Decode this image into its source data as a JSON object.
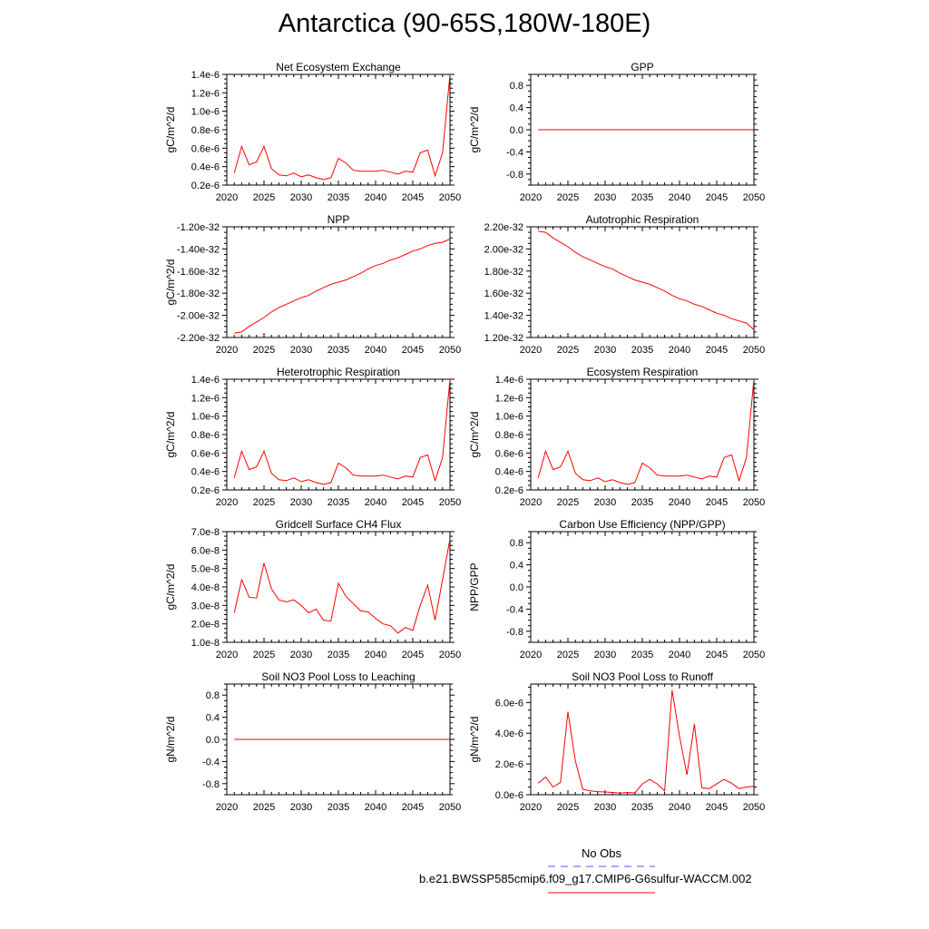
{
  "title": "Antarctica (90-65S,180W-180E)",
  "legend": {
    "obs_label": "No Obs",
    "obs_color": "#5555ff",
    "case_label": "b.e21.BWSSP585cmip6.f09_g17.CMIP6-G6sulfur-WACCM.002",
    "case_color": "#ff0000"
  },
  "chart_data": [
    {
      "type": "line",
      "title": "Net Ecosystem Exchange",
      "ylabel": "gC/m^2/d",
      "xlim": [
        2020,
        2050
      ],
      "x_ticks": [
        2020,
        2025,
        2030,
        2035,
        2040,
        2045,
        2050
      ],
      "ylim": [
        2e-07,
        1.4e-06
      ],
      "y_ticks": [
        2e-07,
        4e-07,
        6e-07,
        8e-07,
        1e-06,
        1.2e-06,
        1.4e-06
      ],
      "y_tick_labels": [
        "0.2e-6",
        "0.4e-6",
        "0.6e-6",
        "0.8e-6",
        "1.0e-6",
        "1.2e-6",
        "1.4e-6"
      ],
      "x": [
        2021,
        2022,
        2023,
        2024,
        2025,
        2026,
        2027,
        2028,
        2029,
        2030,
        2031,
        2032,
        2033,
        2034,
        2035,
        2036,
        2037,
        2038,
        2039,
        2040,
        2041,
        2042,
        2043,
        2044,
        2045,
        2046,
        2047,
        2048,
        2049,
        2050
      ],
      "values": [
        3.3e-07,
        6.2e-07,
        4.2e-07,
        4.5e-07,
        6.2e-07,
        3.8e-07,
        3.1e-07,
        3e-07,
        3.3e-07,
        2.9e-07,
        3.1e-07,
        2.8e-07,
        2.6e-07,
        2.8e-07,
        4.9e-07,
        4.4e-07,
        3.6e-07,
        3.5e-07,
        3.5e-07,
        3.5e-07,
        3.6e-07,
        3.4e-07,
        3.2e-07,
        3.5e-07,
        3.4e-07,
        5.5e-07,
        5.8e-07,
        3e-07,
        5.5e-07,
        1.4e-06
      ],
      "color": "#ff0000"
    },
    {
      "type": "line",
      "title": "GPP",
      "ylabel": "gC/m^2/d",
      "xlim": [
        2020,
        2050
      ],
      "x_ticks": [
        2020,
        2025,
        2030,
        2035,
        2040,
        2045,
        2050
      ],
      "ylim": [
        -1.0,
        1.0
      ],
      "y_ticks": [
        -0.8,
        -0.4,
        0.0,
        0.4,
        0.8
      ],
      "y_tick_labels": [
        "-0.8",
        "-0.4",
        "0.0",
        "0.4",
        "0.8"
      ],
      "x": [
        2021,
        2050
      ],
      "values": [
        0.0,
        0.0
      ],
      "color": "#ff0000"
    },
    {
      "type": "line",
      "title": "NPP",
      "ylabel": "gC/m^2/d",
      "xlim": [
        2020,
        2050
      ],
      "x_ticks": [
        2020,
        2025,
        2030,
        2035,
        2040,
        2045,
        2050
      ],
      "ylim": [
        -2.2e-32,
        -1.2e-32
      ],
      "y_ticks": [
        -2.2e-32,
        -2e-32,
        -1.8e-32,
        -1.6e-32,
        -1.4e-32,
        -1.2e-32
      ],
      "y_tick_labels": [
        "-2.20e-32",
        "-2.00e-32",
        "-1.80e-32",
        "-1.60e-32",
        "-1.40e-32",
        "-1.20e-32"
      ],
      "x": [
        2021,
        2022,
        2023,
        2024,
        2025,
        2026,
        2027,
        2028,
        2029,
        2030,
        2031,
        2032,
        2033,
        2034,
        2035,
        2036,
        2037,
        2038,
        2039,
        2040,
        2041,
        2042,
        2043,
        2044,
        2045,
        2046,
        2047,
        2048,
        2049,
        2050
      ],
      "values": [
        -2.16e-32,
        -2.15e-32,
        -2.1e-32,
        -2.06e-32,
        -2.02e-32,
        -1.97e-32,
        -1.93e-32,
        -1.9e-32,
        -1.87e-32,
        -1.84e-32,
        -1.82e-32,
        -1.78e-32,
        -1.75e-32,
        -1.72e-32,
        -1.7e-32,
        -1.68e-32,
        -1.65e-32,
        -1.62e-32,
        -1.58e-32,
        -1.55e-32,
        -1.53e-32,
        -1.5e-32,
        -1.48e-32,
        -1.45e-32,
        -1.42e-32,
        -1.4e-32,
        -1.37e-32,
        -1.35e-32,
        -1.34e-32,
        -1.31e-32
      ],
      "color": "#ff0000"
    },
    {
      "type": "line",
      "title": "Autotrophic Respiration",
      "ylabel": "",
      "xlim": [
        2020,
        2050
      ],
      "x_ticks": [
        2020,
        2025,
        2030,
        2035,
        2040,
        2045,
        2050
      ],
      "ylim": [
        1.2e-32,
        2.2e-32
      ],
      "y_ticks": [
        1.2e-32,
        1.4e-32,
        1.6e-32,
        1.8e-32,
        2e-32,
        2.2e-32
      ],
      "y_tick_labels": [
        "1.20e-32",
        "1.40e-32",
        "1.60e-32",
        "1.80e-32",
        "2.00e-32",
        "2.20e-32"
      ],
      "x": [
        2021,
        2022,
        2023,
        2024,
        2025,
        2026,
        2027,
        2028,
        2029,
        2030,
        2031,
        2032,
        2033,
        2034,
        2035,
        2036,
        2037,
        2038,
        2039,
        2040,
        2041,
        2042,
        2043,
        2044,
        2045,
        2046,
        2047,
        2048,
        2049,
        2050
      ],
      "values": [
        2.16e-32,
        2.15e-32,
        2.1e-32,
        2.06e-32,
        2.02e-32,
        1.97e-32,
        1.93e-32,
        1.9e-32,
        1.87e-32,
        1.84e-32,
        1.82e-32,
        1.78e-32,
        1.75e-32,
        1.72e-32,
        1.7e-32,
        1.68e-32,
        1.65e-32,
        1.62e-32,
        1.58e-32,
        1.55e-32,
        1.53e-32,
        1.5e-32,
        1.48e-32,
        1.45e-32,
        1.42e-32,
        1.4e-32,
        1.37e-32,
        1.35e-32,
        1.33e-32,
        1.27e-32
      ],
      "color": "#ff0000"
    },
    {
      "type": "line",
      "title": "Heterotrophic Respiration",
      "ylabel": "gC/m^2/d",
      "xlim": [
        2020,
        2050
      ],
      "x_ticks": [
        2020,
        2025,
        2030,
        2035,
        2040,
        2045,
        2050
      ],
      "ylim": [
        2e-07,
        1.4e-06
      ],
      "y_ticks": [
        2e-07,
        4e-07,
        6e-07,
        8e-07,
        1e-06,
        1.2e-06,
        1.4e-06
      ],
      "y_tick_labels": [
        "0.2e-6",
        "0.4e-6",
        "0.6e-6",
        "0.8e-6",
        "1.0e-6",
        "1.2e-6",
        "1.4e-6"
      ],
      "x": [
        2021,
        2022,
        2023,
        2024,
        2025,
        2026,
        2027,
        2028,
        2029,
        2030,
        2031,
        2032,
        2033,
        2034,
        2035,
        2036,
        2037,
        2038,
        2039,
        2040,
        2041,
        2042,
        2043,
        2044,
        2045,
        2046,
        2047,
        2048,
        2049,
        2050
      ],
      "values": [
        3.3e-07,
        6.2e-07,
        4.2e-07,
        4.5e-07,
        6.2e-07,
        3.8e-07,
        3.1e-07,
        3e-07,
        3.3e-07,
        2.9e-07,
        3.1e-07,
        2.8e-07,
        2.6e-07,
        2.8e-07,
        4.9e-07,
        4.4e-07,
        3.6e-07,
        3.5e-07,
        3.5e-07,
        3.5e-07,
        3.6e-07,
        3.4e-07,
        3.2e-07,
        3.5e-07,
        3.4e-07,
        5.5e-07,
        5.8e-07,
        3e-07,
        5.5e-07,
        1.4e-06
      ],
      "color": "#ff0000"
    },
    {
      "type": "line",
      "title": "Ecosystem Respiration",
      "ylabel": "gC/m^2/d",
      "xlim": [
        2020,
        2050
      ],
      "x_ticks": [
        2020,
        2025,
        2030,
        2035,
        2040,
        2045,
        2050
      ],
      "ylim": [
        2e-07,
        1.4e-06
      ],
      "y_ticks": [
        2e-07,
        4e-07,
        6e-07,
        8e-07,
        1e-06,
        1.2e-06,
        1.4e-06
      ],
      "y_tick_labels": [
        "0.2e-6",
        "0.4e-6",
        "0.6e-6",
        "0.8e-6",
        "1.0e-6",
        "1.2e-6",
        "1.4e-6"
      ],
      "x": [
        2021,
        2022,
        2023,
        2024,
        2025,
        2026,
        2027,
        2028,
        2029,
        2030,
        2031,
        2032,
        2033,
        2034,
        2035,
        2036,
        2037,
        2038,
        2039,
        2040,
        2041,
        2042,
        2043,
        2044,
        2045,
        2046,
        2047,
        2048,
        2049,
        2050
      ],
      "values": [
        3.3e-07,
        6.2e-07,
        4.2e-07,
        4.5e-07,
        6.2e-07,
        3.8e-07,
        3.1e-07,
        3e-07,
        3.3e-07,
        2.9e-07,
        3.1e-07,
        2.8e-07,
        2.6e-07,
        2.8e-07,
        4.9e-07,
        4.4e-07,
        3.6e-07,
        3.5e-07,
        3.5e-07,
        3.5e-07,
        3.6e-07,
        3.4e-07,
        3.2e-07,
        3.5e-07,
        3.4e-07,
        5.5e-07,
        5.8e-07,
        3e-07,
        5.5e-07,
        1.4e-06
      ],
      "color": "#ff0000"
    },
    {
      "type": "line",
      "title": "Gridcell Surface CH4 Flux",
      "ylabel": "gC/m^2/d",
      "xlim": [
        2020,
        2050
      ],
      "x_ticks": [
        2020,
        2025,
        2030,
        2035,
        2040,
        2045,
        2050
      ],
      "ylim": [
        1e-08,
        7e-08
      ],
      "y_ticks": [
        1e-08,
        2e-08,
        3e-08,
        4e-08,
        5e-08,
        6e-08,
        7e-08
      ],
      "y_tick_labels": [
        "1.0e-8",
        "2.0e-8",
        "3.0e-8",
        "4.0e-8",
        "5.0e-8",
        "6.0e-8",
        "7.0e-8"
      ],
      "x": [
        2021,
        2022,
        2023,
        2024,
        2025,
        2026,
        2027,
        2028,
        2029,
        2030,
        2031,
        2032,
        2033,
        2034,
        2035,
        2036,
        2037,
        2038,
        2039,
        2040,
        2041,
        2042,
        2043,
        2044,
        2045,
        2046,
        2047,
        2048,
        2049,
        2050
      ],
      "values": [
        2.6e-08,
        4.4e-08,
        3.45e-08,
        3.4e-08,
        5.3e-08,
        3.9e-08,
        3.3e-08,
        3.2e-08,
        3.3e-08,
        3e-08,
        2.6e-08,
        2.8e-08,
        2.2e-08,
        2.15e-08,
        4.2e-08,
        3.5e-08,
        3.1e-08,
        2.7e-08,
        2.65e-08,
        2.3e-08,
        2e-08,
        1.9e-08,
        1.5e-08,
        1.8e-08,
        1.65e-08,
        3e-08,
        4.1e-08,
        2.2e-08,
        4.4e-08,
        6.6e-08
      ],
      "color": "#ff0000"
    },
    {
      "type": "line",
      "title": "Carbon Use Efficiency (NPP/GPP)",
      "ylabel": "NPP/GPP",
      "xlim": [
        2020,
        2050
      ],
      "x_ticks": [
        2020,
        2025,
        2030,
        2035,
        2040,
        2045,
        2050
      ],
      "ylim": [
        -1.0,
        1.0
      ],
      "y_ticks": [
        -0.8,
        -0.4,
        0.0,
        0.4,
        0.8
      ],
      "y_tick_labels": [
        "-0.8",
        "-0.4",
        "0.0",
        "0.4",
        "0.8"
      ],
      "x": [],
      "values": [],
      "color": "#ff0000"
    },
    {
      "type": "line",
      "title": "Soil NO3 Pool Loss to Leaching",
      "ylabel": "gN/m^2/d",
      "xlim": [
        2020,
        2050
      ],
      "x_ticks": [
        2020,
        2025,
        2030,
        2035,
        2040,
        2045,
        2050
      ],
      "ylim": [
        -1.0,
        1.0
      ],
      "y_ticks": [
        -0.8,
        -0.4,
        0.0,
        0.4,
        0.8
      ],
      "y_tick_labels": [
        "-0.8",
        "-0.4",
        "0.0",
        "0.4",
        "0.8"
      ],
      "x": [
        2021,
        2050
      ],
      "values": [
        0.0,
        0.0
      ],
      "color": "#ff0000"
    },
    {
      "type": "line",
      "title": "Soil NO3 Pool Loss to Runoff",
      "ylabel": "gN/m^2/d",
      "xlim": [
        2020,
        2050
      ],
      "x_ticks": [
        2020,
        2025,
        2030,
        2035,
        2040,
        2045,
        2050
      ],
      "ylim": [
        0.0,
        7.2e-06
      ],
      "y_ticks": [
        0.0,
        2e-06,
        4e-06,
        6e-06
      ],
      "y_tick_labels": [
        "0.0e-6",
        "2.0e-6",
        "4.0e-6",
        "6.0e-6"
      ],
      "x": [
        2021,
        2022,
        2023,
        2024,
        2025,
        2026,
        2027,
        2028,
        2029,
        2030,
        2031,
        2032,
        2033,
        2034,
        2035,
        2036,
        2037,
        2038,
        2039,
        2040,
        2041,
        2042,
        2043,
        2044,
        2045,
        2046,
        2047,
        2048,
        2049,
        2050
      ],
      "values": [
        7.5e-07,
        1.15e-06,
        5e-07,
        8e-07,
        5.4e-06,
        2.2e-06,
        3.5e-07,
        2.5e-07,
        2e-07,
        1.8e-07,
        1.5e-07,
        1e-07,
        1.5e-07,
        1.2e-07,
        7e-07,
        1e-06,
        7e-07,
        2.5e-07,
        6.8e-06,
        3.8e-06,
        1.3e-06,
        4.6e-06,
        4.5e-07,
        4e-07,
        7e-07,
        1e-06,
        7.5e-07,
        4e-07,
        5e-07,
        5.5e-07
      ],
      "color": "#ff0000"
    }
  ]
}
